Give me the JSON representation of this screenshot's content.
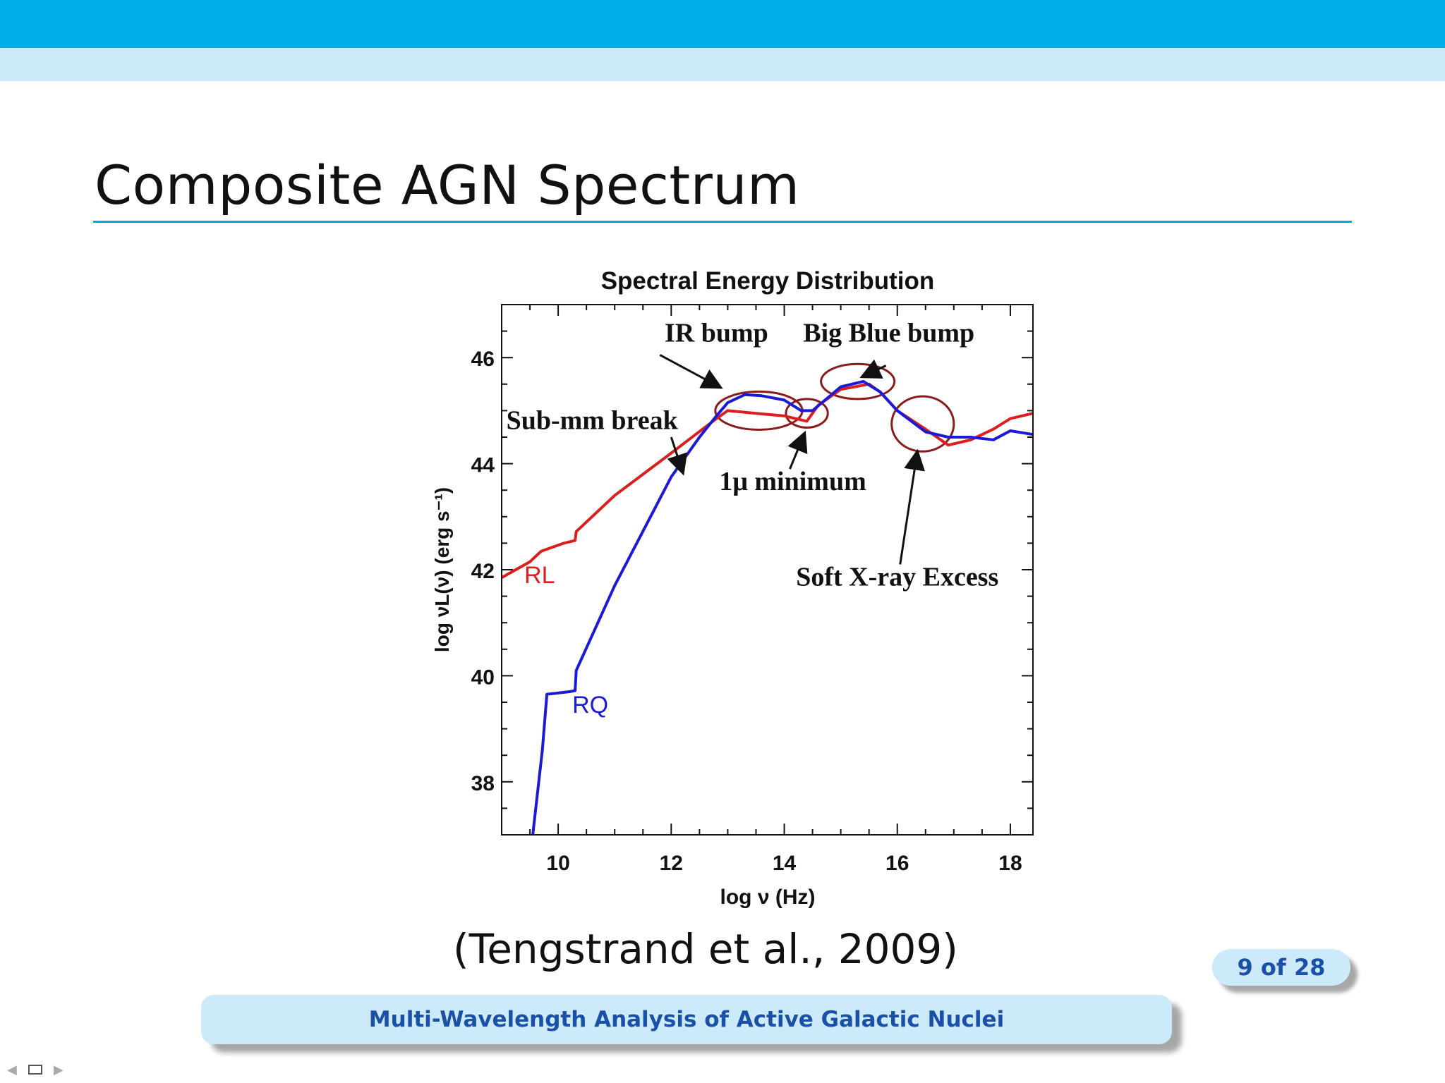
{
  "slide": {
    "title": "Composite AGN Spectrum",
    "citation": "(Tengstrand et al., 2009)",
    "page_indicator": "9 of 28",
    "footer": "Multi-Wavelength Analysis of Active Galactic Nuclei"
  },
  "nav": {
    "prev_icon": "triangle-left",
    "frame_icon": "frame-square",
    "next_icon": "triangle-right"
  },
  "colors": {
    "header": "#00aeea",
    "subheader": "#cceaf9",
    "rl": "#dd1e1e",
    "rq": "#1a1ad6",
    "annotation": "#8b1a1a",
    "text_blue": "#1b50a8"
  },
  "chart_data": {
    "type": "line",
    "title": "Spectral Energy Distribution",
    "xlabel": "log ν (Hz)",
    "ylabel": "log νL(ν) (erg s⁻¹)",
    "xlim": [
      9,
      18.4
    ],
    "ylim": [
      37,
      47
    ],
    "xticks": [
      10,
      12,
      14,
      16,
      18
    ],
    "yticks": [
      38,
      40,
      42,
      44,
      46
    ],
    "series": [
      {
        "name": "RL",
        "color": "#dd1e1e",
        "label_at": [
          9.4,
          41.75
        ],
        "x": [
          9.0,
          9.5,
          9.7,
          10.1,
          10.3,
          10.32,
          11.0,
          12.0,
          12.8,
          13.0,
          13.5,
          14.0,
          14.2,
          14.4,
          14.6,
          15.0,
          15.5,
          15.7,
          16.0,
          16.5,
          16.9,
          17.3,
          17.7,
          18.0,
          18.4
        ],
        "y": [
          41.85,
          42.15,
          42.35,
          42.5,
          42.55,
          42.72,
          43.4,
          44.2,
          44.85,
          45.0,
          44.95,
          44.9,
          44.85,
          44.8,
          45.1,
          45.4,
          45.5,
          45.35,
          45.0,
          44.65,
          44.35,
          44.45,
          44.65,
          44.85,
          44.95
        ]
      },
      {
        "name": "RQ",
        "color": "#1a1ad6",
        "label_at": [
          10.25,
          39.3
        ],
        "x": [
          9.55,
          9.72,
          9.8,
          10.2,
          10.3,
          10.32,
          11.0,
          12.0,
          12.5,
          12.8,
          13.0,
          13.3,
          13.6,
          14.0,
          14.3,
          14.5,
          15.0,
          15.4,
          15.7,
          16.0,
          16.5,
          16.9,
          17.3,
          17.7,
          18.0,
          18.4
        ],
        "y": [
          37.0,
          38.6,
          39.65,
          39.7,
          39.72,
          40.1,
          41.7,
          43.75,
          44.5,
          44.9,
          45.15,
          45.3,
          45.28,
          45.2,
          45.0,
          45.0,
          45.45,
          45.55,
          45.35,
          45.0,
          44.6,
          44.5,
          44.5,
          44.45,
          44.62,
          44.55
        ]
      }
    ],
    "annotations": [
      {
        "text": "IR bump",
        "text_at": [
          12.8,
          46.3
        ],
        "arrow_from": [
          11.8,
          46.05
        ],
        "arrow_to": [
          12.85,
          45.45
        ]
      },
      {
        "text": "Big Blue bump",
        "text_at": [
          15.85,
          46.3
        ],
        "arrow_from": [
          15.8,
          45.85
        ],
        "arrow_to": [
          15.4,
          45.65
        ]
      },
      {
        "text": "Sub-mm break",
        "text_at": [
          10.6,
          44.65
        ],
        "arrow_from": [
          12.0,
          44.5
        ],
        "arrow_to": [
          12.2,
          43.85
        ]
      },
      {
        "text": "1μ minimum",
        "text_at": [
          14.15,
          43.5
        ],
        "arrow_from": [
          14.1,
          43.9
        ],
        "arrow_to": [
          14.35,
          44.55
        ]
      },
      {
        "text": "Soft X-ray Excess",
        "text_at": [
          16.0,
          41.7
        ],
        "arrow_from": [
          16.05,
          42.1
        ],
        "arrow_to": [
          16.35,
          44.2
        ]
      }
    ],
    "highlight_ellipses": [
      {
        "center": [
          13.55,
          45.0
        ],
        "rx": 0.77,
        "ry": 0.36
      },
      {
        "center": [
          14.4,
          44.95
        ],
        "rx": 0.37,
        "ry": 0.27
      },
      {
        "center": [
          15.3,
          45.55
        ],
        "rx": 0.65,
        "ry": 0.33
      },
      {
        "center": [
          16.45,
          44.75
        ],
        "rx": 0.55,
        "ry": 0.52
      }
    ]
  }
}
